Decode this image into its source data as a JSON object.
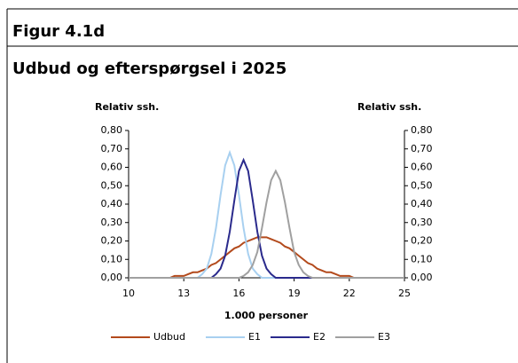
{
  "header": "Figur 4.1d",
  "chart_data": {
    "type": "line",
    "title": "Udbud og efterspørgsel i 2025",
    "y_label": "Relativ ssh.",
    "y2_label": "Relativ ssh.",
    "x_label": "1.000 personer",
    "x": [
      10,
      10.25,
      10.5,
      10.75,
      11,
      11.25,
      11.5,
      11.75,
      12,
      12.25,
      12.5,
      12.75,
      13,
      13.25,
      13.5,
      13.75,
      14,
      14.25,
      14.5,
      14.75,
      15,
      15.25,
      15.5,
      15.75,
      16,
      16.25,
      16.5,
      16.75,
      17,
      17.25,
      17.5,
      17.75,
      18,
      18.25,
      18.5,
      18.75,
      19,
      19.25,
      19.5,
      19.75,
      20,
      20.25,
      20.5,
      20.75,
      21,
      21.25,
      21.5,
      21.75,
      22,
      22.25,
      22.5,
      22.75,
      23,
      23.25,
      23.5,
      23.75,
      24,
      24.25,
      24.5,
      24.75,
      25
    ],
    "series": [
      {
        "name": "Udbud",
        "color": "#b34a1c",
        "values": [
          0,
          0,
          0,
          0,
          0,
          0,
          0,
          0,
          0,
          0,
          0.01,
          0.01,
          0.01,
          0.02,
          0.03,
          0.03,
          0.04,
          0.05,
          0.07,
          0.08,
          0.1,
          0.12,
          0.14,
          0.16,
          0.17,
          0.19,
          0.2,
          0.21,
          0.22,
          0.22,
          0.22,
          0.21,
          0.2,
          0.19,
          0.17,
          0.16,
          0.14,
          0.12,
          0.1,
          0.08,
          0.07,
          0.05,
          0.04,
          0.03,
          0.03,
          0.02,
          0.01,
          0.01,
          0.01,
          0,
          0,
          0,
          0,
          0,
          0,
          0,
          0,
          0,
          0,
          0,
          0
        ]
      },
      {
        "name": "E1",
        "color": "#a8d0f0",
        "values": [
          0,
          0,
          0,
          0,
          0,
          0,
          0,
          0,
          0,
          0,
          0,
          0,
          0,
          0,
          0,
          0,
          0.02,
          0.05,
          0.13,
          0.27,
          0.45,
          0.61,
          0.68,
          0.61,
          0.45,
          0.27,
          0.13,
          0.05,
          0.02,
          0,
          0,
          0,
          0,
          0,
          0,
          0,
          0,
          0,
          0,
          0,
          0,
          0,
          0,
          0,
          0,
          0,
          0,
          0,
          0,
          0,
          0,
          0,
          0,
          0,
          0,
          0,
          0,
          0,
          0,
          0,
          0
        ]
      },
      {
        "name": "E2",
        "color": "#2a2a8c",
        "values": [
          0,
          0,
          0,
          0,
          0,
          0,
          0,
          0,
          0,
          0,
          0,
          0,
          0,
          0,
          0,
          0,
          0,
          0,
          0,
          0.02,
          0.05,
          0.12,
          0.25,
          0.42,
          0.58,
          0.64,
          0.58,
          0.42,
          0.25,
          0.12,
          0.05,
          0.02,
          0,
          0,
          0,
          0,
          0,
          0,
          0,
          0,
          0,
          0,
          0,
          0,
          0,
          0,
          0,
          0,
          0,
          0,
          0,
          0,
          0,
          0,
          0,
          0,
          0,
          0,
          0,
          0,
          0
        ]
      },
      {
        "name": "E3",
        "color": "#a0a0a0",
        "values": [
          0,
          0,
          0,
          0,
          0,
          0,
          0,
          0,
          0,
          0,
          0,
          0,
          0,
          0,
          0,
          0,
          0,
          0,
          0,
          0,
          0,
          0,
          0,
          0,
          0,
          0.01,
          0.03,
          0.07,
          0.14,
          0.27,
          0.41,
          0.53,
          0.58,
          0.53,
          0.41,
          0.27,
          0.14,
          0.07,
          0.03,
          0.01,
          0,
          0,
          0,
          0,
          0,
          0,
          0,
          0,
          0,
          0,
          0,
          0,
          0,
          0,
          0,
          0,
          0,
          0,
          0,
          0,
          0
        ]
      }
    ],
    "xlim": [
      10,
      25
    ],
    "xticks": [
      10,
      13,
      16,
      19,
      22,
      25
    ],
    "ylim": [
      0,
      0.8
    ],
    "yticks": [
      {
        "value": 0,
        "label": "0,00"
      },
      {
        "value": 0.1,
        "label": "0,10"
      },
      {
        "value": 0.2,
        "label": "0,20"
      },
      {
        "value": 0.3,
        "label": "0,30"
      },
      {
        "value": 0.4,
        "label": "0,40"
      },
      {
        "value": 0.5,
        "label": "0,50"
      },
      {
        "value": 0.6,
        "label": "0,60"
      },
      {
        "value": 0.7,
        "label": "0,70"
      },
      {
        "value": 0.8,
        "label": "0,80"
      }
    ],
    "y2lim": [
      0,
      0.8
    ],
    "y2ticks": [
      {
        "value": 0,
        "label": "0,00"
      },
      {
        "value": 0.1,
        "label": "0,10"
      },
      {
        "value": 0.2,
        "label": "0,20"
      },
      {
        "value": 0.3,
        "label": "0,30"
      },
      {
        "value": 0.4,
        "label": "0,40"
      },
      {
        "value": 0.5,
        "label": "0,50"
      },
      {
        "value": 0.6,
        "label": "0,60"
      },
      {
        "value": 0.7,
        "label": "0,70"
      },
      {
        "value": 0.8,
        "label": "0,80"
      }
    ],
    "legend": "bottom"
  }
}
